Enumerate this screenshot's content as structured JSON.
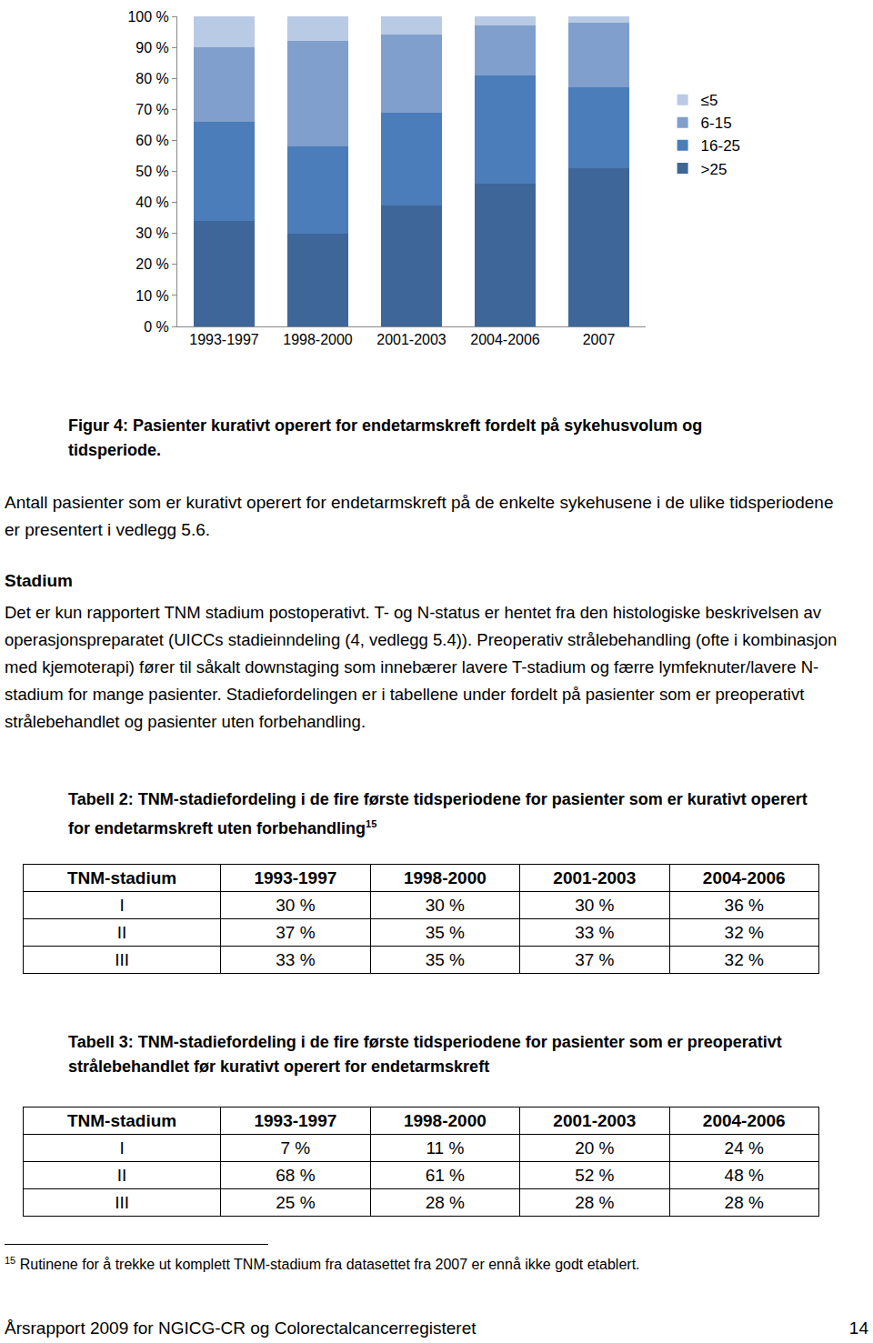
{
  "chart_data": {
    "type": "bar",
    "stacked": true,
    "categories": [
      "1993-1997",
      "1998-2000",
      "2001-2003",
      "2004-2006",
      "2007"
    ],
    "series": [
      {
        "name": ">25",
        "color": "#3E6698",
        "values": [
          34,
          30,
          39,
          46,
          51
        ]
      },
      {
        "name": "16-25",
        "color": "#4A7DB9",
        "values": [
          32,
          28,
          30,
          35,
          26
        ]
      },
      {
        "name": "6-15",
        "color": "#809FCC",
        "values": [
          24,
          34,
          25,
          16,
          21
        ]
      },
      {
        "name": "≤5",
        "color": "#B9CAE4",
        "values": [
          10,
          8,
          6,
          3,
          2
        ]
      }
    ],
    "ylim": [
      0,
      100
    ],
    "yticks": [
      {
        "value": 0,
        "label": "0 %"
      },
      {
        "value": 10,
        "label": "10 %"
      },
      {
        "value": 20,
        "label": "20 %"
      },
      {
        "value": 30,
        "label": "30 %"
      },
      {
        "value": 40,
        "label": "40 %"
      },
      {
        "value": 50,
        "label": "50 %"
      },
      {
        "value": 60,
        "label": "60 %"
      },
      {
        "value": 70,
        "label": "70 %"
      },
      {
        "value": 80,
        "label": "80 %"
      },
      {
        "value": 90,
        "label": "90 %"
      },
      {
        "value": 100,
        "label": "100 %"
      }
    ],
    "grid": false,
    "legend": "right"
  },
  "document": {
    "figure_caption": "Figur 4: Pasienter kurativt operert for endetarmskreft fordelt på sykehusvolum og tidsperiode.",
    "paragraph": "Antall pasienter som er kurativt operert for endetarmskreft på de enkelte sykehusene i de ulike tidsperiodene er presentert i vedlegg 5.6.",
    "heading": "Stadium",
    "stage_paragraph": "Det er kun rapportert TNM stadium postoperativt. T- og N-status er hentet fra den histologiske beskrivelsen av operasjonspreparatet (UICCs stadieinndeling (4, vedlegg 5.4)). Preoperativ strålebehandling (ofte i kombinasjon med kjemoterapi) fører til såkalt downstaging som innebærer lavere T-stadium og færre lymfeknuter/lavere N-stadium for mange pasienter. Stadiefordelingen er i tabellene under fordelt på pasienter som er preoperativt strålebehandlet og pasienter uten forbehandling.",
    "tables": [
      {
        "title": "Tabell 2: TNM-stadiefordeling i de fire første tidsperiodene for pasienter som er kurativt operert for endetarmskreft uten forbehandling",
        "title_sup": "15",
        "header": [
          "TNM-stadium",
          "1993-1997",
          "1998-2000",
          "2001-2003",
          "2004-2006"
        ],
        "rows": [
          [
            "I",
            "30 %",
            "30 %",
            "30 %",
            "36 %"
          ],
          [
            "II",
            "37 %",
            "35 %",
            "33 %",
            "32 %"
          ],
          [
            "III",
            "33 %",
            "35 %",
            "37 %",
            "32 %"
          ]
        ]
      },
      {
        "title": "Tabell 3: TNM-stadiefordeling i de fire første tidsperiodene for pasienter som er preoperativt strålebehandlet før kurativt operert for endetarmskreft",
        "header": [
          "TNM-stadium",
          "1993-1997",
          "1998-2000",
          "2001-2003",
          "2004-2006"
        ],
        "rows": [
          [
            "I",
            "7 %",
            "11 %",
            "20 %",
            "24 %"
          ],
          [
            "II",
            "68 %",
            "61 %",
            "52 %",
            "48 %"
          ],
          [
            "III",
            "25 %",
            "28 %",
            "28 %",
            "28 %"
          ]
        ]
      }
    ],
    "footnote": {
      "marker": "15",
      "text": "Rutinene for å trekke ut komplett TNM-stadium fra datasettet fra 2007 er ennå ikke godt etablert."
    },
    "footer": {
      "left": "Årsrapport 2009 for NGICG-CR og Colorectalcancerregisteret",
      "right": "14"
    }
  }
}
